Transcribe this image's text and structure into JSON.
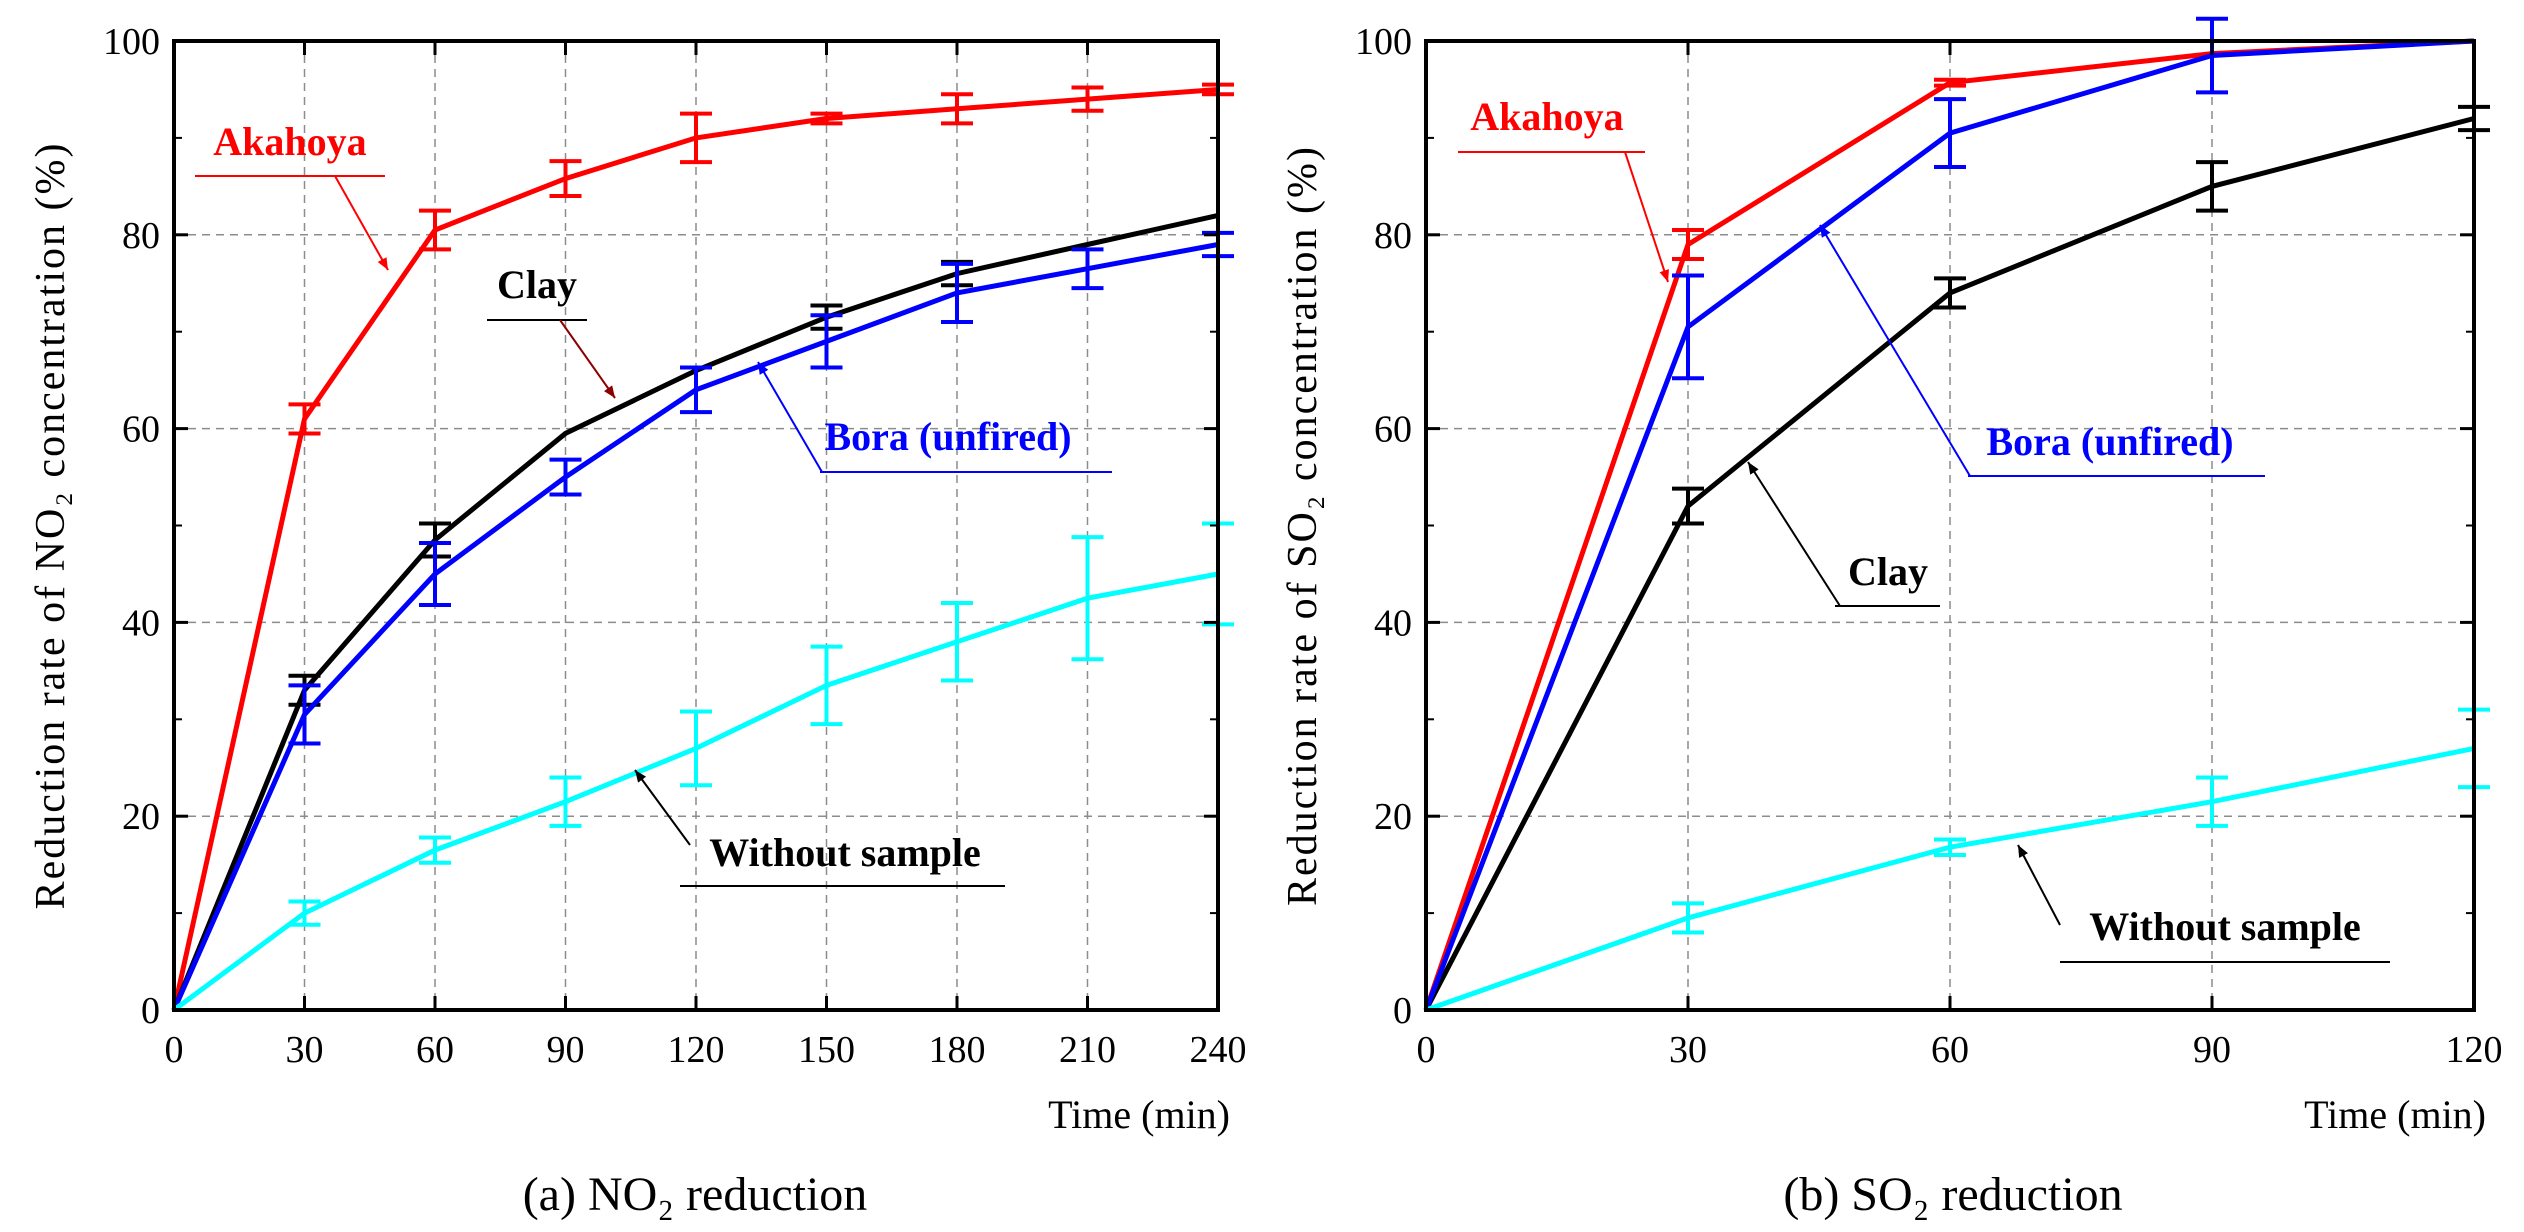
{
  "colors": {
    "Akahoya": "#ff0000",
    "Clay": "#000000",
    "Bora (unfired)": "#0000ff",
    "Without sample": "#00ffff",
    "grid": "#8c8c8c",
    "axis": "#000000"
  },
  "chart_data": [
    {
      "type": "line",
      "caption": "(a) NO₂ reduction",
      "xlabel": "Time (min)",
      "ylabel": "Reduction rate of NO₂ concentration (%)",
      "xlim": [
        0,
        240
      ],
      "ylim": [
        0,
        100
      ],
      "xticks": [
        0,
        30,
        60,
        90,
        120,
        150,
        180,
        210,
        240
      ],
      "yticks": [
        0,
        20,
        40,
        60,
        80,
        100
      ],
      "x": [
        0,
        30,
        60,
        90,
        120,
        150,
        180,
        210,
        240
      ],
      "grid": true,
      "series": [
        {
          "name": "Akahoya",
          "values": [
            0,
            61,
            80.5,
            85.8,
            90,
            92,
            93,
            94,
            95
          ],
          "errors": [
            0,
            1.5,
            2,
            1.8,
            2.5,
            0.5,
            1.5,
            1.2,
            0.5
          ]
        },
        {
          "name": "Clay",
          "values": [
            0,
            33,
            48.5,
            59.5,
            66,
            71.5,
            76,
            79,
            82
          ],
          "errors": [
            0,
            1.5,
            1.7,
            0,
            0,
            1.2,
            1.2,
            0,
            0
          ]
        },
        {
          "name": "Bora (unfired)",
          "values": [
            0,
            30.5,
            45,
            55,
            64,
            69,
            74,
            76.5,
            79
          ],
          "errors": [
            0,
            3,
            3.2,
            1.8,
            2.3,
            2.7,
            3,
            2,
            1.2
          ]
        },
        {
          "name": "Without sample",
          "values": [
            0,
            10,
            16.5,
            21.5,
            27,
            33.5,
            38,
            42.5,
            45
          ],
          "errors": [
            0,
            1.2,
            1.3,
            2.5,
            3.8,
            4,
            4,
            6.3,
            5.2
          ]
        }
      ],
      "annotations": [
        {
          "label": "Akahoya",
          "series": "Akahoya"
        },
        {
          "label": "Clay",
          "series": "Clay"
        },
        {
          "label": "Bora (unfired)",
          "series": "Bora (unfired)"
        },
        {
          "label": "Without sample",
          "series": "Without sample"
        }
      ]
    },
    {
      "type": "line",
      "caption": "(b) SO₂ reduction",
      "xlabel": "Time (min)",
      "ylabel": "Reduction rate of SO₂ concentration (%)",
      "xlim": [
        0,
        120
      ],
      "ylim": [
        0,
        100
      ],
      "xticks": [
        0,
        30,
        60,
        90,
        120
      ],
      "yticks": [
        0,
        20,
        40,
        60,
        80,
        100
      ],
      "x": [
        0,
        30,
        60,
        90,
        120
      ],
      "grid": true,
      "series": [
        {
          "name": "Akahoya",
          "values": [
            0,
            79,
            95.7,
            98.7,
            100
          ],
          "errors": [
            0,
            1.5,
            0.3,
            0,
            0
          ]
        },
        {
          "name": "Clay",
          "values": [
            0,
            52,
            74,
            85,
            92
          ],
          "errors": [
            0,
            1.8,
            1.5,
            2.5,
            1.2
          ]
        },
        {
          "name": "Bora (unfired)",
          "values": [
            0,
            70.5,
            90.5,
            98.5,
            100
          ],
          "errors": [
            0,
            5.3,
            3.5,
            3.8,
            0
          ]
        },
        {
          "name": "Without sample",
          "values": [
            0,
            9.5,
            16.8,
            21.5,
            27
          ],
          "errors": [
            0,
            1.5,
            0.8,
            2.5,
            4
          ]
        }
      ],
      "annotations": [
        {
          "label": "Akahoya",
          "series": "Akahoya"
        },
        {
          "label": "Bora (unfired)",
          "series": "Bora (unfired)"
        },
        {
          "label": "Clay",
          "series": "Clay"
        },
        {
          "label": "Without sample",
          "series": "Without sample"
        }
      ]
    }
  ]
}
